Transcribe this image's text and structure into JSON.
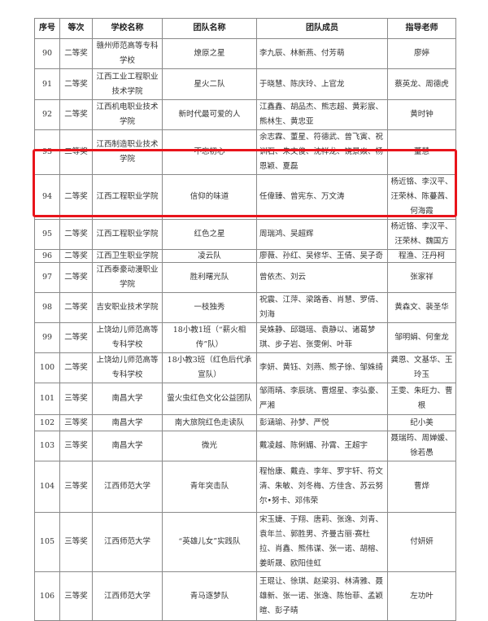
{
  "headers": [
    "序号",
    "等次",
    "学校名称",
    "团队名称",
    "团队成员",
    "指导老师"
  ],
  "highlight_color": "#e8141b",
  "rows": [
    {
      "no": "90",
      "level": "二等奖",
      "school": "赣州师范高等专科学校",
      "team": "燎原之星",
      "members": "李九辰、林新燕、付芳萌",
      "teacher": "廖婷"
    },
    {
      "no": "91",
      "level": "二等奖",
      "school": "江西工业工程职业技术学院",
      "team": "星火二队",
      "members": "于晓慧、陈庆玲、上官龙",
      "teacher": "蔡英龙、周德虎"
    },
    {
      "no": "92",
      "level": "二等奖",
      "school": "江西机电职业技术学院",
      "team": "新时代最可爱的人",
      "members": "江鑫鑫、胡品杰、熊志超、黄彩宸、熊林生、黄忠亚",
      "teacher": "黄时钟"
    },
    {
      "no": "93",
      "level": "二等奖",
      "school": "江西制造职业技术学院",
      "team": "不忘初心",
      "members": "余志霖、董星、符德武、曾飞寅、祝训石、朱文俊、沈祥龙、饶景焱、杨恩颖、夏磊",
      "teacher": "董慧"
    },
    {
      "no": "94",
      "level": "二等奖",
      "school": "江西工程职业学院",
      "team": "信仰的味道",
      "members": "任偉臻、曾宪东、万文涛",
      "teacher": "杨近铬、李汉平、汪荣林、陈蔓茜、何海霞"
    },
    {
      "no": "95",
      "level": "二等奖",
      "school": "江西工程职业学院",
      "team": "红色之星",
      "members": "周瑞鸿、吴超辉",
      "teacher": "杨近铬、李汉平、汪荣林、魏国方"
    },
    {
      "no": "96",
      "level": "二等奖",
      "school": "江西卫生职业学院",
      "team": "凌云队",
      "members": "廖薇、孙红、吴修华、王倩、吴子奇",
      "teacher": "程渔、汪丹柯"
    },
    {
      "no": "97",
      "level": "二等奖",
      "school": "江西泰豪动漫职业学院",
      "team": "胜利曙光队",
      "members": "曾依杰、刘云",
      "teacher": "张家祥"
    },
    {
      "no": "98",
      "level": "二等奖",
      "school": "吉安职业技术学院",
      "team": "一枝独秀",
      "members": "祝震、江萍、梁路香、肖慧、罗倩、刘海",
      "teacher": "黄森文、裴圣华"
    },
    {
      "no": "99",
      "level": "二等奖",
      "school": "上饶幼儿师范高等专科学校",
      "team": "18小教1班（“薪火相传”队）",
      "members": "吴姝静、邱璐瑶、袁静以、诸葛梦琪、步子岩、张雯俐、叶菲",
      "teacher": "邹明娟、何奎龙"
    },
    {
      "no": "100",
      "level": "二等奖",
      "school": "上饶幼儿师范高等专科学校",
      "team": "18小教3班（红色后代承宣队）",
      "members": "李妍、黄钰、刘燕、熊子徐、邹姝绮",
      "teacher": "龚恩、文基华、王玲玉"
    },
    {
      "no": "101",
      "level": "三等奖",
      "school": "南昌大学",
      "team": "萤火虫红色文化公益团队",
      "members": "邹雨晴、李辰珧、曹煜星、李弘豪、严湘",
      "teacher": "王雯、朱旺力、曹根"
    },
    {
      "no": "102",
      "level": "三等奖",
      "school": "南昌大学",
      "team": "南大旅院红色走读队",
      "members": "彭涵瑜、孙梦、严悦",
      "teacher": "纪小美"
    },
    {
      "no": "103",
      "level": "三等奖",
      "school": "南昌大学",
      "team": "微光",
      "members": "戴凌越、陈俐媚、孙霄、王超宇",
      "teacher": "聂瑞筠、周婵媛、徐若愚"
    },
    {
      "no": "104",
      "level": "三等奖",
      "school": "江西师范大学",
      "team": "青年突击队",
      "members": "程怡康、戴垚、李年、罗宇轩、符文清、朱敏、刘冬梅、方佳含、苏云努尔•努卡、邓伟荣",
      "teacher": "曹烨"
    },
    {
      "no": "105",
      "level": "三等奖",
      "school": "江西师范大学",
      "team": "“英雄儿女”实践队",
      "members": "宋玉婕、于翔、唐莉、张逸、刘青、袁年兰、郭胜男、齐曼古丽·赛杜拉、肖鑫、熊伟谋、张一诺、胡榕、姜昕晟、欧阳佳虹",
      "teacher": "付妍妍"
    },
    {
      "no": "106",
      "level": "三等奖",
      "school": "江西师范大学",
      "team": "青马逐梦队",
      "members": "王琨让、徐琪、赵梁羽、林清雅、聂雄新、张一诺、张逸、陈怡菲、孟颖暄、彭子晴",
      "teacher": "左功叶"
    }
  ]
}
